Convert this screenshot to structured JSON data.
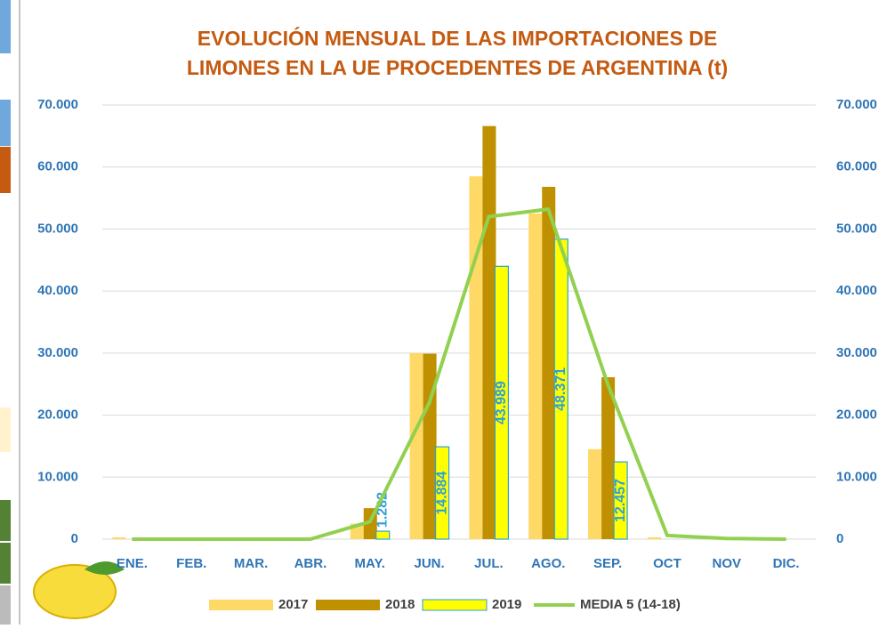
{
  "chart_data": {
    "type": "bar",
    "title_lines": [
      "EVOLUCIÓN MENSUAL DE LAS IMPORTACIONES DE",
      "LIMONES EN LA UE PROCEDENTES DE ARGENTINA (t)"
    ],
    "categories": [
      "ENE.",
      "FEB.",
      "MAR.",
      "ABR.",
      "MAY.",
      "JUN.",
      "JUL.",
      "AGO.",
      "SEP.",
      "OCT",
      "NOV",
      "DIC."
    ],
    "series": [
      {
        "name": "2017",
        "color": "#ffd966",
        "values": [
          300,
          0,
          0,
          0,
          2500,
          30000,
          58500,
          52500,
          14500,
          300,
          0,
          0
        ]
      },
      {
        "name": "2018",
        "color": "#bf9000",
        "values": [
          0,
          0,
          0,
          0,
          5000,
          29900,
          66600,
          56800,
          26100,
          0,
          0,
          0
        ]
      },
      {
        "name": "2019",
        "color": "#ffff00",
        "border": "#2e9fd8",
        "values": [
          null,
          null,
          null,
          null,
          1282,
          14884,
          43989,
          48371,
          12457,
          null,
          null,
          null
        ],
        "value_labels": [
          null,
          null,
          null,
          null,
          "1.282",
          "14.884",
          "43.989",
          "48.371",
          "12.457",
          null,
          null,
          null
        ]
      },
      {
        "name": "MEDIA 5 (14-18)",
        "type": "line",
        "color": "#92d050",
        "values": [
          0,
          0,
          0,
          0,
          2800,
          22000,
          52000,
          53200,
          25000,
          600,
          100,
          0
        ]
      }
    ],
    "ylim": [
      0,
      70000
    ],
    "yticks": [
      0,
      {
        "value": 10000,
        "label": "10.000"
      },
      {
        "value": 20000,
        "label": "20.000"
      },
      {
        "value": 30000,
        "label": "30.000"
      },
      {
        "value": 40000,
        "label": "40.000"
      },
      {
        "value": 50000,
        "label": "50.000"
      },
      {
        "value": 60000,
        "label": "60.000"
      },
      {
        "value": 70000,
        "label": "70.000"
      }
    ],
    "y2lim": [
      0,
      70000
    ],
    "y2ticks": [
      0,
      {
        "value": 10000,
        "label": "10.000"
      },
      {
        "value": 20000,
        "label": "20.000"
      },
      {
        "value": 30000,
        "label": "30.000"
      },
      {
        "value": 40000,
        "label": "40.000"
      },
      {
        "value": 50000,
        "label": "50.000"
      },
      {
        "value": 60000,
        "label": "60.000"
      },
      {
        "value": 70000,
        "label": "70.000"
      }
    ],
    "grid": true,
    "legend": "bottom"
  }
}
